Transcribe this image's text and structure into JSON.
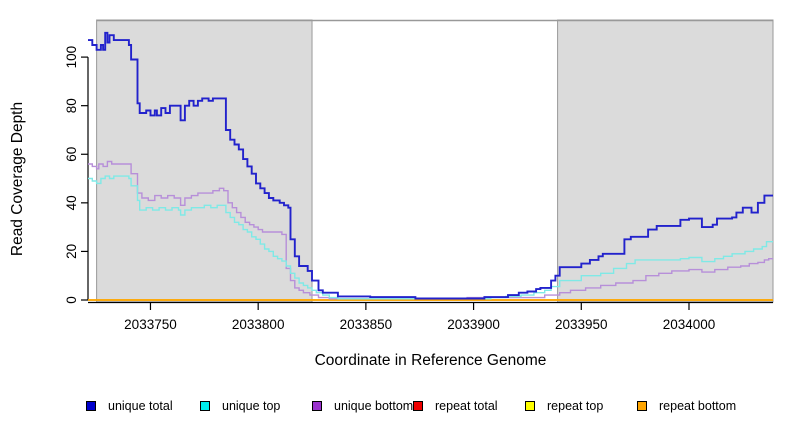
{
  "chart_data": {
    "type": "line",
    "step": true,
    "title": "",
    "xlabel": "Coordinate in Reference Genome",
    "ylabel": "Read Coverage Depth",
    "xlim": [
      2033721,
      2034039
    ],
    "ylim": [
      0,
      115
    ],
    "x_ticks": [
      2033750,
      2033800,
      2033850,
      2033900,
      2033950,
      2034000
    ],
    "y_ticks": [
      0,
      20,
      40,
      60,
      80,
      100
    ],
    "grid": false,
    "legend_position": "bottom",
    "shading": {
      "fill_color": "#dbdbdb",
      "border_color": "#999999",
      "regions": [
        {
          "start": 2033725,
          "end": 2033825
        },
        {
          "start": 2033939,
          "end": 2034039
        }
      ],
      "white_gap": {
        "start": 2033825,
        "end": 2033939
      }
    },
    "series": [
      {
        "name": "repeat total",
        "legend_color": "#ee0000",
        "line_color": "#ee0000",
        "points": [
          [
            2033721,
            0
          ],
          [
            2034039,
            0
          ]
        ]
      },
      {
        "name": "repeat top",
        "legend_color": "#ffff00",
        "line_color": "#ffff00",
        "points": [
          [
            2033721,
            0
          ],
          [
            2034039,
            0
          ]
        ]
      },
      {
        "name": "repeat bottom",
        "legend_color": "#ffa500",
        "line_color": "#ffa500",
        "points": [
          [
            2033721,
            0
          ],
          [
            2034039,
            0
          ]
        ]
      },
      {
        "name": "unique bottom",
        "legend_color": "#9a32cd",
        "line_color": "#b78fd9",
        "points": [
          [
            2033721,
            56
          ],
          [
            2033723,
            55
          ],
          [
            2033725,
            54
          ],
          [
            2033726,
            56
          ],
          [
            2033728,
            55
          ],
          [
            2033730,
            57
          ],
          [
            2033732,
            56
          ],
          [
            2033740,
            56
          ],
          [
            2033741,
            52
          ],
          [
            2033744,
            44
          ],
          [
            2033746,
            42
          ],
          [
            2033749,
            41
          ],
          [
            2033752,
            43
          ],
          [
            2033755,
            42
          ],
          [
            2033758,
            43
          ],
          [
            2033761,
            42
          ],
          [
            2033764,
            39
          ],
          [
            2033766,
            42
          ],
          [
            2033769,
            43
          ],
          [
            2033772,
            44
          ],
          [
            2033776,
            44
          ],
          [
            2033779,
            45
          ],
          [
            2033782,
            46
          ],
          [
            2033784,
            45
          ],
          [
            2033786,
            40
          ],
          [
            2033788,
            38
          ],
          [
            2033790,
            36
          ],
          [
            2033792,
            34
          ],
          [
            2033794,
            32
          ],
          [
            2033796,
            31
          ],
          [
            2033798,
            30
          ],
          [
            2033800,
            29
          ],
          [
            2033802,
            28
          ],
          [
            2033808,
            28
          ],
          [
            2033811,
            27
          ],
          [
            2033813,
            13
          ],
          [
            2033815,
            8
          ],
          [
            2033817,
            5
          ],
          [
            2033819,
            4
          ],
          [
            2033821,
            3
          ],
          [
            2033824,
            2
          ],
          [
            2033828,
            1
          ],
          [
            2033833,
            0.5
          ],
          [
            2033888,
            0.5
          ],
          [
            2033897,
            1
          ],
          [
            2033933,
            2
          ],
          [
            2033940,
            3
          ],
          [
            2033945,
            4
          ],
          [
            2033952,
            5
          ],
          [
            2033959,
            6
          ],
          [
            2033966,
            7
          ],
          [
            2033974,
            8
          ],
          [
            2033980,
            10
          ],
          [
            2033986,
            11
          ],
          [
            2033992,
            12
          ],
          [
            2034000,
            12.5
          ],
          [
            2034006,
            11.5
          ],
          [
            2034012,
            12.5
          ],
          [
            2034018,
            13.5
          ],
          [
            2034024,
            14
          ],
          [
            2034028,
            15
          ],
          [
            2034032,
            15.5
          ],
          [
            2034035,
            16.5
          ],
          [
            2034037,
            17
          ],
          [
            2034039,
            17
          ]
        ]
      },
      {
        "name": "unique top",
        "legend_color": "#00eeee",
        "line_color": "#7fe9e6",
        "points": [
          [
            2033721,
            50
          ],
          [
            2033723,
            49
          ],
          [
            2033725,
            48
          ],
          [
            2033727,
            50
          ],
          [
            2033729,
            51
          ],
          [
            2033731,
            50
          ],
          [
            2033733,
            51
          ],
          [
            2033740,
            50
          ],
          [
            2033741,
            47
          ],
          [
            2033744,
            41
          ],
          [
            2033745,
            37
          ],
          [
            2033748,
            38
          ],
          [
            2033751,
            37
          ],
          [
            2033754,
            38
          ],
          [
            2033757,
            37
          ],
          [
            2033760,
            38
          ],
          [
            2033763,
            37
          ],
          [
            2033764,
            35
          ],
          [
            2033766,
            37
          ],
          [
            2033769,
            38
          ],
          [
            2033772,
            38
          ],
          [
            2033775,
            39
          ],
          [
            2033778,
            38
          ],
          [
            2033781,
            39
          ],
          [
            2033785,
            36
          ],
          [
            2033787,
            34
          ],
          [
            2033789,
            32
          ],
          [
            2033791,
            31
          ],
          [
            2033793,
            29
          ],
          [
            2033795,
            28
          ],
          [
            2033797,
            26
          ],
          [
            2033799,
            25
          ],
          [
            2033801,
            23
          ],
          [
            2033803,
            21
          ],
          [
            2033805,
            20
          ],
          [
            2033807,
            18
          ],
          [
            2033809,
            17
          ],
          [
            2033811,
            16
          ],
          [
            2033813,
            14
          ],
          [
            2033815,
            11
          ],
          [
            2033817,
            9
          ],
          [
            2033819,
            7
          ],
          [
            2033821,
            6
          ],
          [
            2033823,
            5
          ],
          [
            2033825,
            4
          ],
          [
            2033827,
            3
          ],
          [
            2033830,
            2
          ],
          [
            2033833,
            1
          ],
          [
            2033837,
            0.5
          ],
          [
            2033898,
            0.5
          ],
          [
            2033908,
            1
          ],
          [
            2033915,
            1.5
          ],
          [
            2033922,
            2
          ],
          [
            2033928,
            3
          ],
          [
            2033933,
            4
          ],
          [
            2033936,
            5.5
          ],
          [
            2033940,
            8
          ],
          [
            2033950,
            10
          ],
          [
            2033959,
            11
          ],
          [
            2033965,
            13
          ],
          [
            2033971,
            15
          ],
          [
            2033975,
            16.5
          ],
          [
            2033996,
            17
          ],
          [
            2034000,
            17.5
          ],
          [
            2034006,
            15.8
          ],
          [
            2034012,
            17
          ],
          [
            2034016,
            18
          ],
          [
            2034020,
            19
          ],
          [
            2034026,
            20
          ],
          [
            2034030,
            21
          ],
          [
            2034034,
            22
          ],
          [
            2034036,
            24
          ],
          [
            2034039,
            24
          ]
        ]
      },
      {
        "name": "unique total",
        "legend_color": "#0000cd",
        "line_color": "#2222cc",
        "points": [
          [
            2033721,
            107
          ],
          [
            2033723,
            105
          ],
          [
            2033725,
            103
          ],
          [
            2033727,
            105
          ],
          [
            2033728,
            103
          ],
          [
            2033729,
            110
          ],
          [
            2033730,
            106
          ],
          [
            2033731,
            109
          ],
          [
            2033733,
            107
          ],
          [
            2033740,
            105
          ],
          [
            2033741,
            99
          ],
          [
            2033744,
            81
          ],
          [
            2033745,
            77
          ],
          [
            2033748,
            78
          ],
          [
            2033750,
            76
          ],
          [
            2033752,
            78
          ],
          [
            2033753,
            76
          ],
          [
            2033755,
            79
          ],
          [
            2033757,
            77
          ],
          [
            2033759,
            80
          ],
          [
            2033763,
            80
          ],
          [
            2033764,
            74
          ],
          [
            2033766,
            80
          ],
          [
            2033768,
            82
          ],
          [
            2033770,
            80
          ],
          [
            2033772,
            82
          ],
          [
            2033774,
            83
          ],
          [
            2033777,
            82
          ],
          [
            2033779,
            83
          ],
          [
            2033785,
            70
          ],
          [
            2033787,
            66
          ],
          [
            2033789,
            64
          ],
          [
            2033791,
            62
          ],
          [
            2033793,
            58
          ],
          [
            2033795,
            55
          ],
          [
            2033797,
            52
          ],
          [
            2033799,
            48
          ],
          [
            2033801,
            46
          ],
          [
            2033803,
            44
          ],
          [
            2033805,
            42
          ],
          [
            2033807,
            41
          ],
          [
            2033810,
            40
          ],
          [
            2033812,
            39
          ],
          [
            2033814,
            38
          ],
          [
            2033815,
            25
          ],
          [
            2033817,
            18
          ],
          [
            2033819,
            14
          ],
          [
            2033823,
            12
          ],
          [
            2033825,
            8
          ],
          [
            2033828,
            4
          ],
          [
            2033830,
            3
          ],
          [
            2033837,
            1.5
          ],
          [
            2033852,
            1.2
          ],
          [
            2033873,
            0.6
          ],
          [
            2033905,
            1.2
          ],
          [
            2033916,
            2
          ],
          [
            2033921,
            3
          ],
          [
            2033925,
            3.5
          ],
          [
            2033929,
            4.5
          ],
          [
            2033931,
            5
          ],
          [
            2033936,
            8
          ],
          [
            2033938,
            10
          ],
          [
            2033940,
            13.5
          ],
          [
            2033950,
            15
          ],
          [
            2033954,
            16.5
          ],
          [
            2033958,
            18
          ],
          [
            2033960,
            19
          ],
          [
            2033970,
            25
          ],
          [
            2033973,
            26
          ],
          [
            2033981,
            29
          ],
          [
            2033985,
            30.5
          ],
          [
            2033996,
            33
          ],
          [
            2034000,
            33.5
          ],
          [
            2034006,
            30
          ],
          [
            2034011,
            31
          ],
          [
            2034013,
            33.5
          ],
          [
            2034020,
            34
          ],
          [
            2034022,
            36
          ],
          [
            2034025,
            38
          ],
          [
            2034029,
            36
          ],
          [
            2034032,
            40
          ],
          [
            2034035,
            43
          ],
          [
            2034039,
            43
          ]
        ]
      }
    ],
    "legend_order": [
      "unique total",
      "unique top",
      "unique bottom",
      "repeat total",
      "repeat top",
      "repeat bottom"
    ]
  }
}
